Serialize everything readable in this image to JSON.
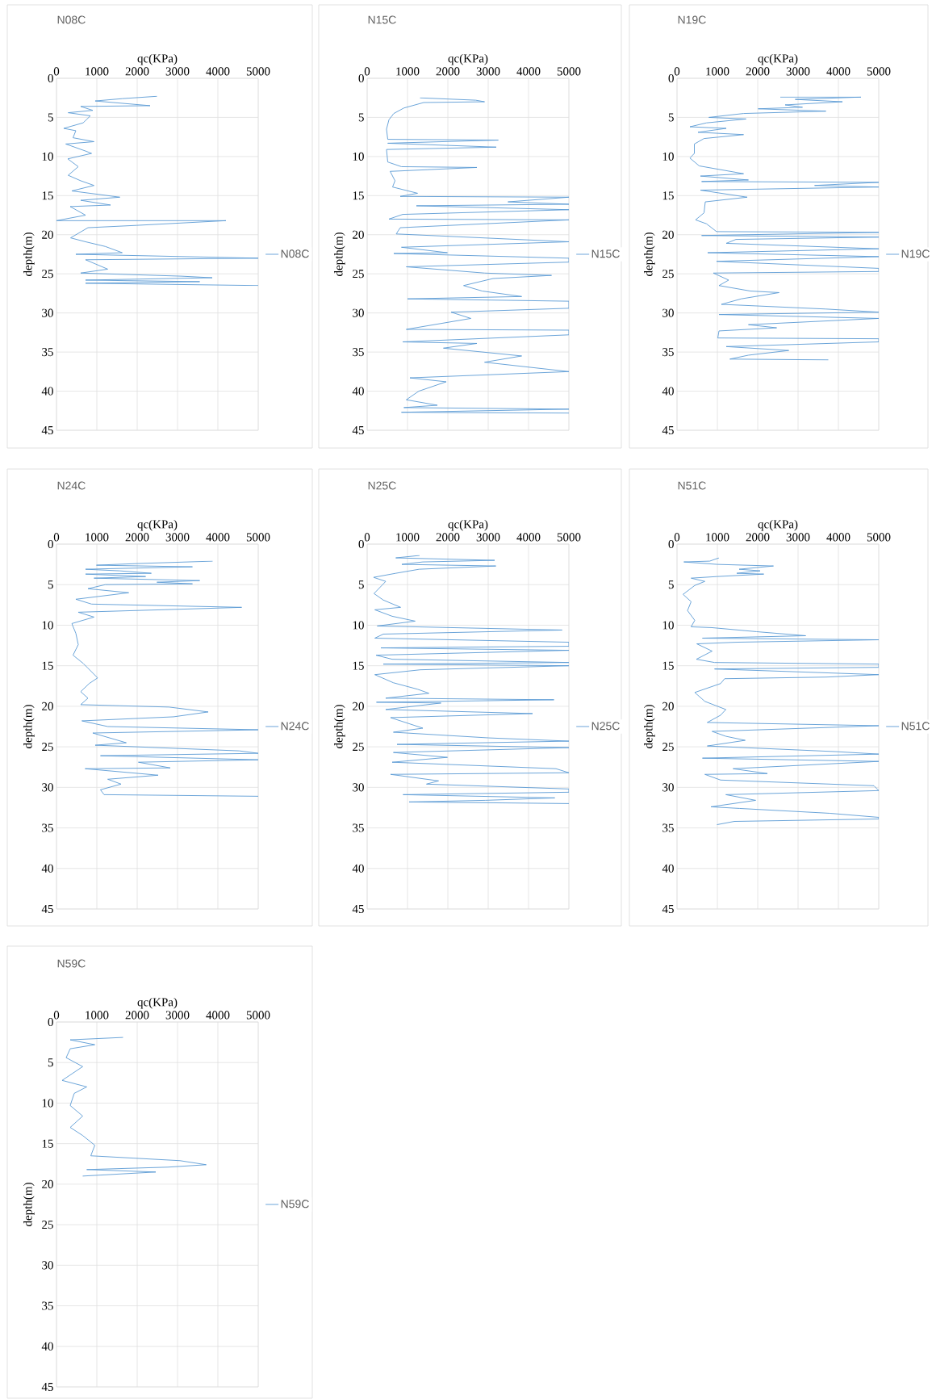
{
  "chart_data": [
    {
      "type": "line",
      "title": "N08C",
      "xlabel": "qc(KPa)",
      "ylabel": "depth(m)",
      "xlim": [
        0,
        5000
      ],
      "xticks": [
        0,
        1000,
        2000,
        3000,
        4000,
        5000
      ],
      "ylim": [
        45,
        0
      ],
      "yticks": [
        0,
        5,
        10,
        15,
        20,
        25,
        30,
        35,
        40,
        45
      ],
      "grid": true,
      "legend": "right",
      "marker": "none",
      "series": [
        {
          "name": "N08C",
          "color": "#5b9bd5",
          "x": [
            2490,
            1630,
            960,
            2320,
            600,
            900,
            290,
            840,
            660,
            180,
            480,
            410,
            930,
            230,
            720,
            870,
            280,
            540,
            290,
            600,
            930,
            380,
            1570,
            600,
            1340,
            340,
            720,
            0,
            4200,
            1990,
            780,
            350,
            720,
            1210,
            1630,
            480,
            5000,
            720,
            1270,
            600,
            3100,
            3860,
            720,
            3550,
            720,
            5000
          ],
          "values": [
            2.3,
            2.6,
            2.9,
            3.5,
            3.6,
            4.1,
            4.4,
            4.8,
            5.7,
            6.4,
            6.7,
            7.6,
            8.1,
            8.4,
            9.3,
            9.6,
            10.3,
            11.3,
            12.4,
            13.1,
            13.7,
            14.4,
            15.2,
            15.6,
            16.2,
            16.4,
            17.5,
            18.2,
            18.2,
            18.8,
            19.1,
            20.4,
            20.9,
            21.5,
            22.3,
            22.5,
            23.0,
            23.2,
            24.4,
            24.9,
            25.3,
            25.5,
            25.8,
            26.0,
            26.2,
            26.5
          ]
        }
      ]
    },
    {
      "type": "line",
      "title": "N15C",
      "xlabel": "qc(KPa)",
      "ylabel": "depth(m)",
      "xlim": [
        0,
        5000
      ],
      "xticks": [
        0,
        1000,
        2000,
        3000,
        4000,
        5000
      ],
      "ylim": [
        45,
        0
      ],
      "yticks": [
        0,
        5,
        10,
        15,
        20,
        25,
        30,
        35,
        40,
        45
      ],
      "grid": true,
      "legend": "right",
      "marker": "none",
      "series": [
        {
          "name": "N15C",
          "color": "#5b9bd5",
          "x": [
            1310,
            2690,
            2910,
            1400,
            910,
            660,
            540,
            480,
            510,
            3250,
            510,
            3200,
            480,
            510,
            850,
            2720,
            570,
            690,
            630,
            1250,
            820,
            5000,
            3490,
            5000,
            1220,
            5000,
            880,
            540,
            5000,
            820,
            720,
            5000,
            850,
            1990,
            660,
            5000,
            5000,
            970,
            2910,
            4570,
            3120,
            2390,
            2850,
            3830,
            1000,
            5000,
            5000,
            2080,
            2570,
            970,
            5000,
            5000,
            880,
            2720,
            1890,
            3830,
            2910,
            5000,
            1060,
            1960,
            1280,
            970,
            1740,
            910,
            5000,
            850,
            5000
          ],
          "values": [
            2.5,
            2.8,
            3.0,
            3.1,
            3.8,
            4.5,
            5.3,
            6.5,
            7.8,
            7.9,
            8.3,
            8.8,
            9.1,
            10.7,
            11.3,
            11.4,
            11.9,
            13.1,
            13.9,
            14.7,
            15.1,
            15.2,
            15.8,
            16.1,
            16.3,
            16.8,
            17.4,
            18.0,
            18.1,
            19.1,
            19.9,
            20.9,
            21.6,
            22.3,
            22.4,
            23.0,
            23.5,
            24.1,
            24.9,
            25.2,
            25.6,
            26.5,
            27.2,
            27.9,
            28.2,
            28.5,
            29.4,
            29.9,
            30.7,
            32.1,
            32.2,
            32.8,
            33.7,
            33.9,
            34.5,
            35.5,
            36.3,
            37.5,
            38.3,
            38.8,
            40.0,
            41.1,
            41.8,
            42.1,
            42.3,
            42.7,
            42.8
          ]
        }
      ]
    },
    {
      "type": "line",
      "title": "N19C",
      "xlabel": "qc(KPa)",
      "ylabel": "depth(m)",
      "xlim": [
        0,
        5000
      ],
      "xticks": [
        0,
        1000,
        2000,
        3000,
        4000,
        5000
      ],
      "ylim": [
        45,
        0
      ],
      "yticks": [
        0,
        5,
        10,
        15,
        20,
        25,
        30,
        35,
        40,
        45
      ],
      "grid": true,
      "legend": "right",
      "marker": "none",
      "series": [
        {
          "name": "N19C",
          "color": "#5b9bd5",
          "x": [
            2560,
            4560,
            2930,
            4100,
            2680,
            3110,
            2010,
            3690,
            1650,
            790,
            1710,
            730,
            320,
            1220,
            520,
            1650,
            670,
            430,
            430,
            320,
            550,
            1650,
            580,
            1770,
            610,
            5000,
            3410,
            5000,
            580,
            1220,
            1740,
            700,
            670,
            460,
            730,
            980,
            5000,
            610,
            5000,
            1460,
            1220,
            5000,
            760,
            5000,
            980,
            5000,
            5000,
            900,
            1280,
            1040,
            1820,
            2530,
            1590,
            1100,
            3690,
            5000,
            1040,
            5000,
            1770,
            2470,
            1040,
            1010,
            5000,
            5000,
            1220,
            2770,
            1770,
            1310,
            3750
          ],
          "values": [
            2.4,
            2.4,
            2.7,
            3.0,
            3.4,
            3.7,
            3.9,
            4.2,
            4.5,
            5.0,
            5.2,
            5.7,
            6.2,
            6.4,
            6.9,
            7.2,
            7.7,
            8.4,
            9.6,
            10.2,
            11.2,
            12.2,
            12.5,
            13.0,
            13.2,
            13.3,
            13.7,
            13.9,
            14.3,
            14.8,
            15.2,
            15.8,
            17.2,
            18.1,
            18.6,
            19.6,
            19.7,
            20.1,
            20.3,
            20.6,
            21.1,
            21.8,
            22.3,
            22.8,
            23.4,
            24.3,
            24.7,
            24.9,
            25.8,
            26.5,
            27.2,
            27.4,
            28.2,
            28.9,
            29.5,
            29.9,
            30.2,
            30.7,
            31.5,
            31.9,
            32.3,
            33.2,
            33.3,
            33.7,
            34.3,
            34.8,
            35.4,
            35.9,
            36.0
          ]
        }
      ]
    },
    {
      "type": "line",
      "title": "N24C",
      "xlabel": "qc(KPa)",
      "ylabel": "depth(m)",
      "xlim": [
        0,
        5000
      ],
      "xticks": [
        0,
        1000,
        2000,
        3000,
        4000,
        5000
      ],
      "ylim": [
        45,
        0
      ],
      "yticks": [
        0,
        5,
        10,
        15,
        20,
        25,
        30,
        35,
        40,
        45
      ],
      "grid": true,
      "legend": "right",
      "marker": "none",
      "series": [
        {
          "name": "N24C",
          "color": "#5b9bd5",
          "x": [
            3870,
            2000,
            990,
            3370,
            720,
            1570,
            2350,
            720,
            2210,
            930,
            3550,
            2490,
            3370,
            1210,
            780,
            1790,
            480,
            870,
            4590,
            3280,
            540,
            930,
            380,
            480,
            540,
            410,
            660,
            780,
            1020,
            810,
            600,
            780,
            600,
            2790,
            3760,
            2900,
            630,
            1270,
            5000,
            900,
            1730,
            960,
            4530,
            5000,
            1090,
            5000,
            2030,
            2820,
            710,
            2520,
            1270,
            1600,
            1090,
            1180,
            5000
          ],
          "values": [
            2.1,
            2.4,
            2.6,
            2.8,
            3.1,
            3.3,
            3.6,
            3.7,
            4.0,
            4.2,
            4.5,
            4.7,
            4.9,
            5.0,
            5.5,
            6.0,
            6.8,
            7.4,
            7.8,
            8.0,
            8.4,
            9.0,
            9.8,
            11.0,
            12.4,
            13.7,
            14.7,
            15.3,
            16.5,
            17.2,
            18.2,
            19.0,
            19.8,
            20.1,
            20.7,
            21.3,
            21.8,
            22.5,
            22.9,
            23.3,
            24.5,
            24.8,
            25.5,
            25.8,
            26.1,
            26.6,
            26.9,
            27.6,
            27.7,
            28.5,
            29.0,
            29.6,
            30.3,
            30.9,
            31.1
          ]
        }
      ]
    },
    {
      "type": "line",
      "title": "N25C",
      "xlabel": "qc(KPa)",
      "ylabel": "depth(m)",
      "xlim": [
        0,
        5000
      ],
      "xticks": [
        0,
        1000,
        2000,
        3000,
        4000,
        5000
      ],
      "ylim": [
        45,
        0
      ],
      "yticks": [
        0,
        5,
        10,
        15,
        20,
        25,
        30,
        35,
        40,
        45
      ],
      "grid": true,
      "legend": "right",
      "marker": "none",
      "series": [
        {
          "name": "N25C",
          "color": "#5b9bd5",
          "x": [
            1300,
            710,
            3160,
            1380,
            860,
            3190,
            1290,
            710,
            160,
            460,
            170,
            400,
            830,
            190,
            620,
            1190,
            250,
            4830,
            400,
            190,
            5000,
            5000,
            340,
            5000,
            220,
            620,
            5000,
            400,
            5000,
            1320,
            190,
            650,
            1250,
            1530,
            460,
            4630,
            230,
            1830,
            460,
            4100,
            580,
            1380,
            650,
            3010,
            5000,
            740,
            5000,
            650,
            1990,
            620,
            4680,
            5000,
            580,
            1770,
            1470,
            5000,
            5000,
            890,
            4650,
            2930,
            1040,
            5000
          ],
          "values": [
            1.4,
            1.7,
            2.0,
            2.2,
            2.5,
            2.7,
            3.1,
            3.6,
            4.1,
            4.6,
            6.1,
            6.9,
            7.8,
            8.1,
            8.9,
            9.5,
            10.1,
            10.6,
            11.1,
            11.6,
            12.1,
            12.6,
            12.8,
            13.1,
            13.7,
            14.2,
            14.6,
            14.8,
            15.0,
            15.5,
            16.1,
            17.1,
            17.9,
            18.4,
            19.0,
            19.2,
            19.5,
            19.6,
            20.4,
            20.9,
            21.4,
            22.7,
            23.2,
            23.9,
            24.3,
            24.7,
            25.1,
            25.7,
            26.3,
            26.9,
            27.7,
            28.2,
            28.4,
            29.2,
            29.6,
            30.2,
            30.6,
            30.9,
            31.3,
            31.6,
            31.8,
            32.0
          ]
        }
      ]
    },
    {
      "type": "line",
      "title": "N51C",
      "xlabel": "qc(KPa)",
      "ylabel": "depth(m)",
      "xlim": [
        0,
        5000
      ],
      "xticks": [
        0,
        1000,
        2000,
        3000,
        4000,
        5000
      ],
      "ylim": [
        45,
        0
      ],
      "yticks": [
        0,
        5,
        10,
        15,
        20,
        25,
        30,
        35,
        40,
        45
      ],
      "grid": true,
      "legend": "right",
      "marker": "none",
      "series": [
        {
          "name": "N51C",
          "color": "#5b9bd5",
          "x": [
            1040,
            810,
            170,
            990,
            2390,
            1540,
            2060,
            1480,
            2150,
            990,
            350,
            690,
            440,
            150,
            350,
            260,
            440,
            350,
            860,
            1970,
            3190,
            630,
            5000,
            1480,
            490,
            870,
            480,
            930,
            5000,
            5000,
            930,
            5000,
            3700,
            1180,
            1080,
            440,
            690,
            1210,
            1080,
            750,
            5000,
            870,
            1210,
            1690,
            750,
            3960,
            5000,
            630,
            5000,
            1390,
            2240,
            690,
            1080,
            4880,
            5000,
            1210,
            1950,
            840,
            1550,
            3790,
            5000,
            5000,
            1420,
            990
          ],
          "values": [
            1.7,
            2.1,
            2.2,
            2.5,
            2.7,
            3.1,
            3.3,
            3.6,
            3.7,
            4.0,
            4.2,
            4.6,
            5.1,
            6.2,
            7.1,
            8.2,
            9.4,
            10.2,
            10.3,
            10.8,
            11.3,
            11.6,
            11.8,
            12.1,
            12.3,
            13.2,
            14.2,
            14.6,
            14.8,
            15.2,
            15.4,
            16.1,
            16.4,
            16.6,
            17.2,
            18.3,
            19.4,
            20.4,
            21.1,
            22.0,
            22.4,
            23.1,
            23.7,
            24.2,
            24.9,
            25.6,
            25.9,
            26.4,
            26.8,
            27.7,
            28.3,
            28.4,
            29.1,
            29.8,
            30.4,
            30.9,
            31.6,
            32.4,
            32.6,
            33.2,
            33.7,
            33.9,
            34.2,
            34.6
          ]
        }
      ]
    },
    {
      "type": "line",
      "title": "N59C",
      "xlabel": "qc(KPa)",
      "ylabel": "depth(m)",
      "xlim": [
        0,
        5000
      ],
      "xticks": [
        0,
        1000,
        2000,
        3000,
        4000,
        5000
      ],
      "ylim": [
        45,
        0
      ],
      "yticks": [
        0,
        5,
        10,
        15,
        20,
        25,
        30,
        35,
        40,
        45
      ],
      "grid": true,
      "legend": "right",
      "marker": "none",
      "series": [
        {
          "name": "N59C",
          "color": "#5b9bd5",
          "x": [
            1650,
            340,
            950,
            340,
            240,
            650,
            140,
            750,
            440,
            340,
            650,
            340,
            650,
            950,
            850,
            3060,
            3710,
            2760,
            750,
            2460,
            650
          ],
          "values": [
            1.9,
            2.2,
            2.8,
            3.3,
            4.4,
            5.5,
            7.2,
            8.0,
            8.8,
            10.3,
            11.6,
            13.0,
            14.0,
            15.2,
            16.5,
            17.1,
            17.6,
            17.9,
            18.2,
            18.5,
            19.0
          ]
        }
      ]
    }
  ]
}
